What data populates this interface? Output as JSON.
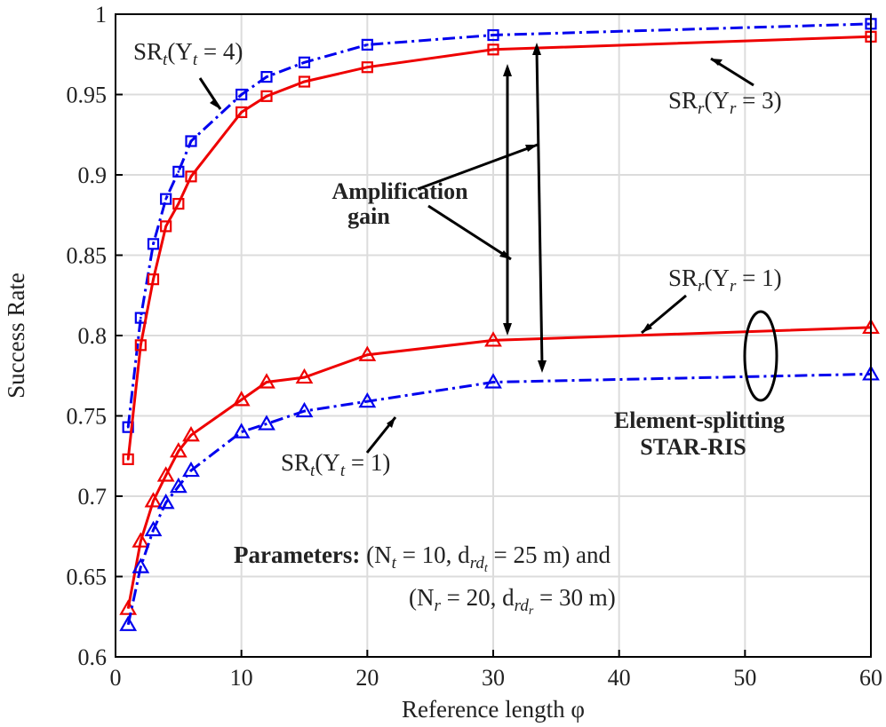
{
  "chart_data": {
    "type": "line",
    "xlabel": "Reference length φ",
    "ylabel": "Success Rate",
    "xlim": [
      0,
      60
    ],
    "ylim": [
      0.6,
      1
    ],
    "xticks": [
      "0",
      "10",
      "20",
      "30",
      "40",
      "50",
      "60"
    ],
    "yticks": [
      "0.6",
      "0.65",
      "0.7",
      "0.75",
      "0.8",
      "0.85",
      "0.9",
      "0.95",
      "1"
    ],
    "grid": true,
    "x": [
      1,
      2,
      3,
      4,
      5,
      6,
      10,
      12,
      15,
      20,
      30,
      60
    ],
    "series": [
      {
        "name": "SR_t(Υ_t = 4)",
        "color": "#0000ee",
        "style": "dashdot",
        "marker": "square",
        "values": [
          0.743,
          0.811,
          0.857,
          0.885,
          0.902,
          0.921,
          0.95,
          0.961,
          0.97,
          0.981,
          0.987,
          0.994
        ]
      },
      {
        "name": "SR_r(Υ_r = 3)",
        "color": "#ee0000",
        "style": "solid",
        "marker": "square",
        "values": [
          0.723,
          0.794,
          0.835,
          0.868,
          0.882,
          0.899,
          0.939,
          0.949,
          0.958,
          0.967,
          0.978,
          0.986
        ]
      },
      {
        "name": "SR_r(Υ_r = 1)",
        "color": "#ee0000",
        "style": "solid",
        "marker": "triangle",
        "values": [
          0.63,
          0.672,
          0.697,
          0.713,
          0.728,
          0.738,
          0.76,
          0.771,
          0.774,
          0.788,
          0.797,
          0.805
        ]
      },
      {
        "name": "SR_t(Υ_t = 1)",
        "color": "#0000ee",
        "style": "dashdot",
        "marker": "triangle",
        "values": [
          0.62,
          0.656,
          0.679,
          0.696,
          0.706,
          0.716,
          0.74,
          0.745,
          0.753,
          0.759,
          0.771,
          0.776
        ]
      }
    ],
    "annotations": {
      "sr_t4": {
        "base": "SR",
        "sub": "t",
        "open": "(Υ",
        "sub2": "t",
        "rest": " = 4)"
      },
      "sr_r3": {
        "base": "SR",
        "sub": "r",
        "open": "(Υ",
        "sub2": "r",
        "rest": " = 3)"
      },
      "sr_r1": {
        "base": "SR",
        "sub": "r",
        "open": "(Υ",
        "sub2": "r",
        "rest": " = 1)"
      },
      "sr_t1": {
        "base": "SR",
        "sub": "t",
        "open": "(Υ",
        "sub2": "t",
        "rest": " = 1)"
      },
      "amplification_line1": "Amplification",
      "amplification_line2": "gain",
      "element_line1": "Element-splitting",
      "element_line2": "STAR-RIS",
      "parameters_label": "Parameters:",
      "param1": {
        "a": " (N",
        "a_sub": "t",
        "b": " = 10, d",
        "b_sub": "rd",
        "b_subsub": "t",
        "c": " = 25 m) and"
      },
      "param2": {
        "a": "(N",
        "a_sub": "r",
        "b": " = 20, d",
        "b_sub": "rd",
        "b_subsub": "r",
        "c": " = 30 m)"
      }
    }
  }
}
